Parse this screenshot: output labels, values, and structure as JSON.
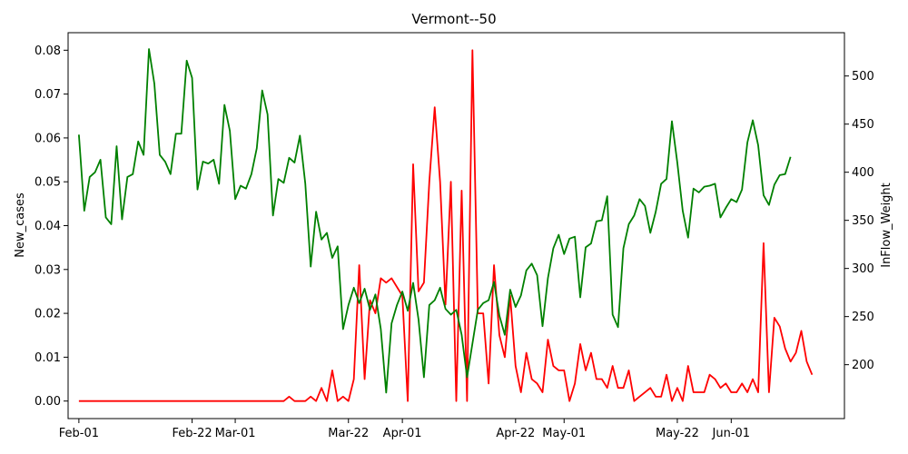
{
  "chart_data": {
    "type": "line",
    "title": "Vermont--50",
    "ylabel": "New_cases",
    "y2label": "InFlow_Weight",
    "xlim": [
      "2020-01-30",
      "2020-06-22"
    ],
    "ylim": [
      -0.004,
      0.084
    ],
    "y2lim": [
      144,
      545
    ],
    "x_ticks": [
      {
        "date": "2020-02-01",
        "label": "Feb-01"
      },
      {
        "date": "2020-02-22",
        "label": "Feb-22"
      },
      {
        "date": "2020-03-01",
        "label": "Mar-01"
      },
      {
        "date": "2020-03-22",
        "label": "Mar-22"
      },
      {
        "date": "2020-04-01",
        "label": "Apr-01"
      },
      {
        "date": "2020-04-22",
        "label": "Apr-22"
      },
      {
        "date": "2020-05-01",
        "label": "May-01"
      },
      {
        "date": "2020-05-22",
        "label": "May-22"
      },
      {
        "date": "2020-06-01",
        "label": "Jun-01"
      }
    ],
    "y_ticks": [
      "0.00",
      "0.01",
      "0.02",
      "0.03",
      "0.04",
      "0.05",
      "0.06",
      "0.07",
      "0.08"
    ],
    "y2_ticks": [
      "200",
      "250",
      "300",
      "350",
      "400",
      "450",
      "500"
    ],
    "series": [
      {
        "color": "#ff0000",
        "axis": "left",
        "start": "2020-02-01",
        "values": [
          0,
          0,
          0,
          0,
          0,
          0,
          0,
          0,
          0,
          0,
          0,
          0,
          0,
          0,
          0,
          0,
          0,
          0,
          0,
          0,
          0,
          0,
          0,
          0,
          0,
          0,
          0,
          0,
          0,
          0,
          0,
          0,
          0,
          0,
          0,
          0,
          0,
          0,
          0,
          0.001,
          0,
          0,
          0,
          0.001,
          0,
          0.003,
          0,
          0.007,
          0,
          0.001,
          0,
          0.005,
          0.031,
          0.005,
          0.023,
          0.02,
          0.028,
          0.027,
          0.028,
          0.026,
          0.024,
          0,
          0.054,
          0.025,
          0.027,
          0.05,
          0.067,
          0.05,
          0.022,
          0.05,
          0,
          0.048,
          0,
          0.08,
          0.02,
          0.02,
          0.004,
          0.031,
          0.015,
          0.01,
          0.024,
          0.008,
          0.002,
          0.011,
          0.005,
          0.004,
          0.002,
          0.014,
          0.008,
          0.007,
          0.007,
          0,
          0.004,
          0.013,
          0.007,
          0.011,
          0.005,
          0.005,
          0.003,
          0.008,
          0.003,
          0.003,
          0.007,
          0,
          0.001,
          0.002,
          0.003,
          0.001,
          0.001,
          0.006,
          0,
          0.003,
          0,
          0.008,
          0.002,
          0.002,
          0.002,
          0.006,
          0.005,
          0.003,
          0.004,
          0.002,
          0.002,
          0.004,
          0.002,
          0.005,
          0.002,
          0.036,
          0.002,
          0.019,
          0.017,
          0.012,
          0.009,
          0.011,
          0.016,
          0.009,
          0.006
        ]
      },
      {
        "color": "#008000",
        "axis": "right",
        "start": "2020-02-01",
        "values": [
          439,
          360,
          395,
          400,
          413,
          353,
          346,
          427,
          351,
          395,
          398,
          432,
          418,
          528,
          492,
          418,
          411,
          398,
          440,
          440,
          516,
          498,
          382,
          411,
          409,
          413,
          388,
          470,
          443,
          372,
          386,
          383,
          398,
          425,
          485,
          460,
          355,
          393,
          389,
          415,
          410,
          438,
          388,
          302,
          359,
          330,
          337,
          311,
          323,
          237,
          262,
          280,
          264,
          279,
          257,
          273,
          237,
          171,
          243,
          262,
          276,
          256,
          285,
          247,
          187,
          262,
          267,
          280,
          258,
          252,
          257,
          231,
          187,
          222,
          257,
          264,
          267,
          286,
          251,
          231,
          278,
          260,
          272,
          298,
          305,
          293,
          240,
          290,
          321,
          335,
          315,
          331,
          333,
          270,
          322,
          326,
          349,
          350,
          375,
          252,
          239,
          321,
          346,
          355,
          372,
          365,
          337,
          359,
          388,
          393,
          453,
          410,
          360,
          332,
          383,
          379,
          385,
          386,
          388,
          353,
          363,
          372,
          369,
          382,
          431,
          454,
          428,
          376,
          366,
          387,
          397,
          398,
          416
        ]
      }
    ]
  }
}
